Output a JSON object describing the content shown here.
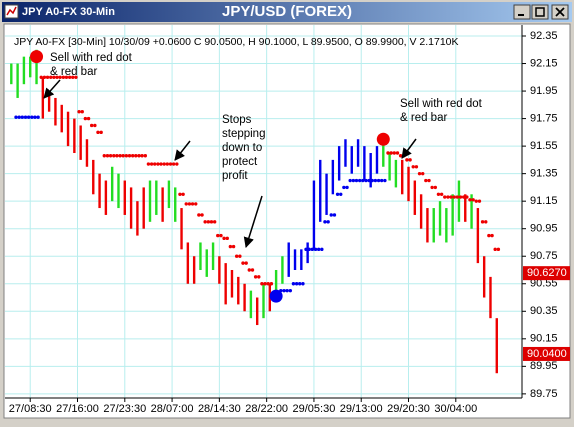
{
  "chart_data": {
    "type": "range-bar",
    "window_title": "JPY A0-FX 30-Min",
    "title": "JPY/USD (FOREX)",
    "info": "JPY A0-FX [30-Min] 10/30/09 +0.0600 C 90.0500, H 90.1000, L 89.9500, O 89.9900, V 2.1710K",
    "xlim": [
      -1,
      81
    ],
    "ylim": [
      89.72,
      92.43
    ],
    "yticks": [
      92.35,
      92.15,
      91.95,
      91.75,
      91.55,
      91.35,
      91.15,
      90.95,
      90.75,
      90.55,
      90.35,
      90.15,
      89.95,
      89.75
    ],
    "xticks": [
      {
        "value": 3,
        "label": "27/08:30"
      },
      {
        "value": 10.5,
        "label": "27/16:00"
      },
      {
        "value": 18,
        "label": "27/23:30"
      },
      {
        "value": 25.5,
        "label": "28/07:00"
      },
      {
        "value": 33,
        "label": "28/14:30"
      },
      {
        "value": 40.5,
        "label": "28/22:00"
      },
      {
        "value": 48,
        "label": "29/05:30"
      },
      {
        "value": 55.5,
        "label": "29/13:00"
      },
      {
        "value": 63,
        "label": "29/20:30"
      },
      {
        "value": 70.5,
        "label": "30/04:00"
      }
    ],
    "grid": true,
    "high": [
      92.15,
      92.15,
      92.2,
      92.2,
      92.25,
      92.05,
      91.95,
      91.9,
      91.85,
      91.8,
      91.75,
      91.7,
      91.6,
      91.45,
      91.35,
      91.3,
      91.4,
      91.35,
      91.3,
      91.25,
      91.15,
      91.25,
      91.3,
      91.3,
      91.25,
      91.3,
      91.25,
      91.1,
      90.85,
      90.75,
      90.85,
      90.8,
      90.85,
      90.75,
      90.7,
      90.65,
      90.6,
      90.55,
      90.5,
      90.45,
      90.55,
      90.55,
      90.65,
      90.75,
      90.85,
      90.8,
      90.8,
      90.85,
      91.3,
      91.45,
      91.35,
      91.45,
      91.55,
      91.6,
      91.55,
      91.6,
      91.55,
      91.5,
      91.55,
      91.6,
      91.5,
      91.45,
      91.45,
      91.4,
      91.3,
      91.2,
      91.1,
      91.1,
      91.15,
      91.1,
      91.2,
      91.3,
      91.2,
      91.2,
      91.1,
      90.75,
      90.6,
      90.3
    ],
    "low": [
      92.0,
      91.9,
      92.0,
      92.05,
      92.0,
      91.75,
      91.8,
      91.7,
      91.65,
      91.55,
      91.5,
      91.45,
      91.4,
      91.2,
      91.1,
      91.05,
      91.15,
      91.1,
      91.05,
      90.95,
      90.9,
      90.95,
      91.0,
      91.05,
      91.0,
      91.1,
      91.0,
      90.8,
      90.55,
      90.55,
      90.65,
      90.6,
      90.65,
      90.55,
      90.4,
      90.45,
      90.4,
      90.35,
      90.3,
      90.25,
      90.3,
      90.35,
      90.45,
      90.55,
      90.6,
      90.65,
      90.65,
      90.7,
      90.8,
      91.0,
      91.05,
      91.2,
      91.3,
      91.4,
      91.35,
      91.4,
      91.3,
      91.25,
      91.35,
      91.4,
      91.3,
      91.25,
      91.2,
      91.15,
      91.05,
      90.95,
      90.85,
      90.85,
      90.9,
      90.85,
      90.9,
      91.0,
      91.0,
      90.95,
      90.7,
      90.45,
      90.3,
      89.9
    ],
    "bar_colors": [
      "#22dd22",
      "#22dd22",
      "#22dd22",
      "#22dd22",
      "#22dd22",
      "#ee0000",
      "#ee0000",
      "#ee0000",
      "#ee0000",
      "#ee0000",
      "#ee0000",
      "#ee0000",
      "#ee0000",
      "#ee0000",
      "#ee0000",
      "#ee0000",
      "#22dd22",
      "#22dd22",
      "#ee0000",
      "#ee0000",
      "#ee0000",
      "#ee0000",
      "#22dd22",
      "#22dd22",
      "#ee0000",
      "#22dd22",
      "#22dd22",
      "#ee0000",
      "#ee0000",
      "#ee0000",
      "#22dd22",
      "#22dd22",
      "#22dd22",
      "#ee0000",
      "#ee0000",
      "#ee0000",
      "#ee0000",
      "#ee0000",
      "#22dd22",
      "#ee0000",
      "#22dd22",
      "#ee0000",
      "#22dd22",
      "#22dd22",
      "#0000ee",
      "#0000ee",
      "#0000ee",
      "#0000ee",
      "#0000ee",
      "#0000ee",
      "#0000ee",
      "#0000ee",
      "#0000ee",
      "#0000ee",
      "#0000ee",
      "#0000ee",
      "#0000ee",
      "#0000ee",
      "#0000ee",
      "#22dd22",
      "#22dd22",
      "#22dd22",
      "#ee0000",
      "#ee0000",
      "#ee0000",
      "#ee0000",
      "#ee0000",
      "#22dd22",
      "#22dd22",
      "#22dd22",
      "#22dd22",
      "#22dd22",
      "#ee0000",
      "#22dd22",
      "#ee0000",
      "#ee0000",
      "#ee0000",
      "#ee0000"
    ],
    "stops": [
      {
        "color": "#ee0000",
        "values": [
          null,
          null,
          null,
          null,
          null,
          92.05,
          92.05,
          92.05,
          92.05,
          92.05,
          92.05,
          91.8,
          91.75,
          91.7,
          91.65,
          91.48,
          91.48,
          91.48,
          91.48,
          91.48,
          91.48,
          91.48,
          91.42,
          91.42,
          91.42,
          91.42,
          91.42,
          91.2,
          91.13,
          91.13,
          91.05,
          91.0,
          91.0,
          90.9,
          90.88,
          90.82,
          90.75,
          90.7,
          90.65,
          90.6,
          90.55,
          90.55,
          null,
          null,
          null,
          null,
          null,
          null,
          null,
          null,
          null,
          null,
          null,
          null,
          null,
          null,
          null,
          null,
          null,
          null,
          91.5,
          91.5,
          91.48,
          91.45,
          91.4,
          91.35,
          91.3,
          91.25,
          91.2,
          91.18,
          91.18,
          91.18,
          91.18,
          91.16,
          91.15,
          91.0,
          90.9,
          90.8
        ]
      },
      {
        "color": "#0000ee",
        "values": [
          null,
          91.76,
          91.76,
          91.76,
          91.76,
          null,
          null,
          null,
          null,
          null,
          null,
          null,
          null,
          null,
          null,
          null,
          null,
          null,
          null,
          null,
          null,
          null,
          null,
          null,
          null,
          null,
          null,
          null,
          null,
          null,
          null,
          null,
          null,
          null,
          null,
          null,
          null,
          null,
          null,
          null,
          null,
          null,
          90.46,
          90.5,
          90.5,
          90.55,
          90.55,
          90.8,
          90.8,
          90.8,
          91.0,
          91.05,
          91.2,
          91.25,
          91.3,
          91.3,
          91.3,
          91.3,
          91.3,
          91.3,
          null,
          null,
          null,
          null,
          null,
          null,
          null,
          null,
          null,
          null,
          null,
          null,
          null,
          null,
          null,
          null,
          null,
          null
        ]
      }
    ],
    "signals": [
      {
        "index": 4,
        "value": 92.2,
        "color": "#ee0000"
      },
      {
        "index": 42,
        "value": 90.46,
        "color": "#0000ee"
      },
      {
        "index": 59,
        "value": 91.6,
        "color": "#ee0000"
      }
    ],
    "price_tags": [
      {
        "value": 90.627,
        "label": "90.6270",
        "color": "#dd0000"
      },
      {
        "value": 90.04,
        "label": "90.0400",
        "color": "#dd0000"
      }
    ],
    "annotations": [
      {
        "lines": [
          "Sell with red dot",
          "& red bar"
        ]
      },
      {
        "lines": [
          "Stops",
          "stepping",
          "down to",
          "protect",
          "profit"
        ]
      },
      {
        "lines": [
          "Sell with red dot",
          "& red bar"
        ]
      }
    ]
  }
}
